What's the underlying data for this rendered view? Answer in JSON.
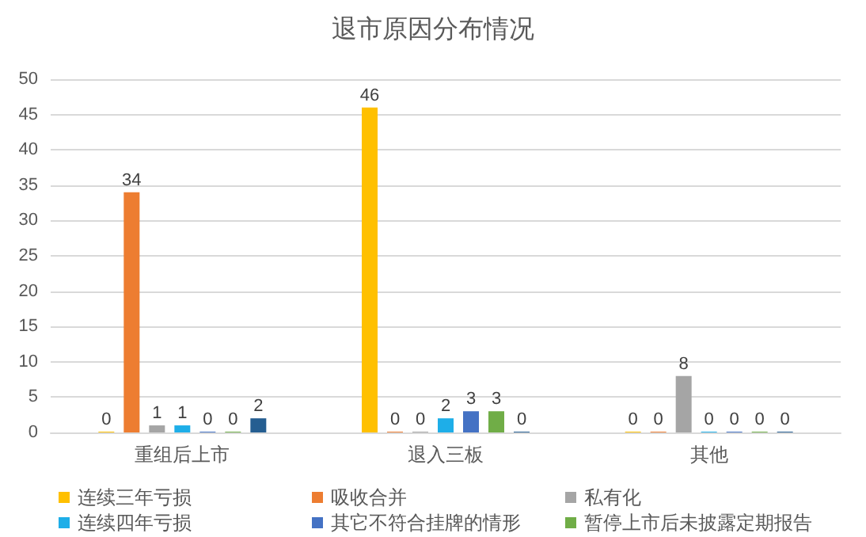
{
  "chart_data": {
    "type": "bar",
    "title": "退市原因分布情况",
    "categories": [
      "重组后上市",
      "退入三板",
      "其他"
    ],
    "series": [
      {
        "name": "连续三年亏损",
        "color": "#ffc000",
        "values": [
          0,
          46,
          0
        ]
      },
      {
        "name": "吸收合并",
        "color": "#ed7d31",
        "values": [
          34,
          0,
          0
        ]
      },
      {
        "name": "私有化",
        "color": "#a5a5a5",
        "values": [
          1,
          0,
          8
        ]
      },
      {
        "name": "连续四年亏损",
        "color": "#1eaee8",
        "values": [
          1,
          2,
          0
        ]
      },
      {
        "name": "其它不符合挂牌的情形",
        "color": "#4472c4",
        "values": [
          0,
          3,
          0
        ]
      },
      {
        "name": "暂停上市后未披露定期报告",
        "color": "#70ad47",
        "values": [
          0,
          3,
          0
        ]
      },
      {
        "color": "#255e91",
        "values": [
          2,
          0,
          0
        ]
      }
    ],
    "ylim": [
      0,
      50
    ],
    "yticks": [
      0,
      5,
      10,
      15,
      20,
      25,
      30,
      35,
      40,
      45,
      50
    ],
    "grid": "y",
    "legend": "bottom",
    "data_labels": true
  }
}
